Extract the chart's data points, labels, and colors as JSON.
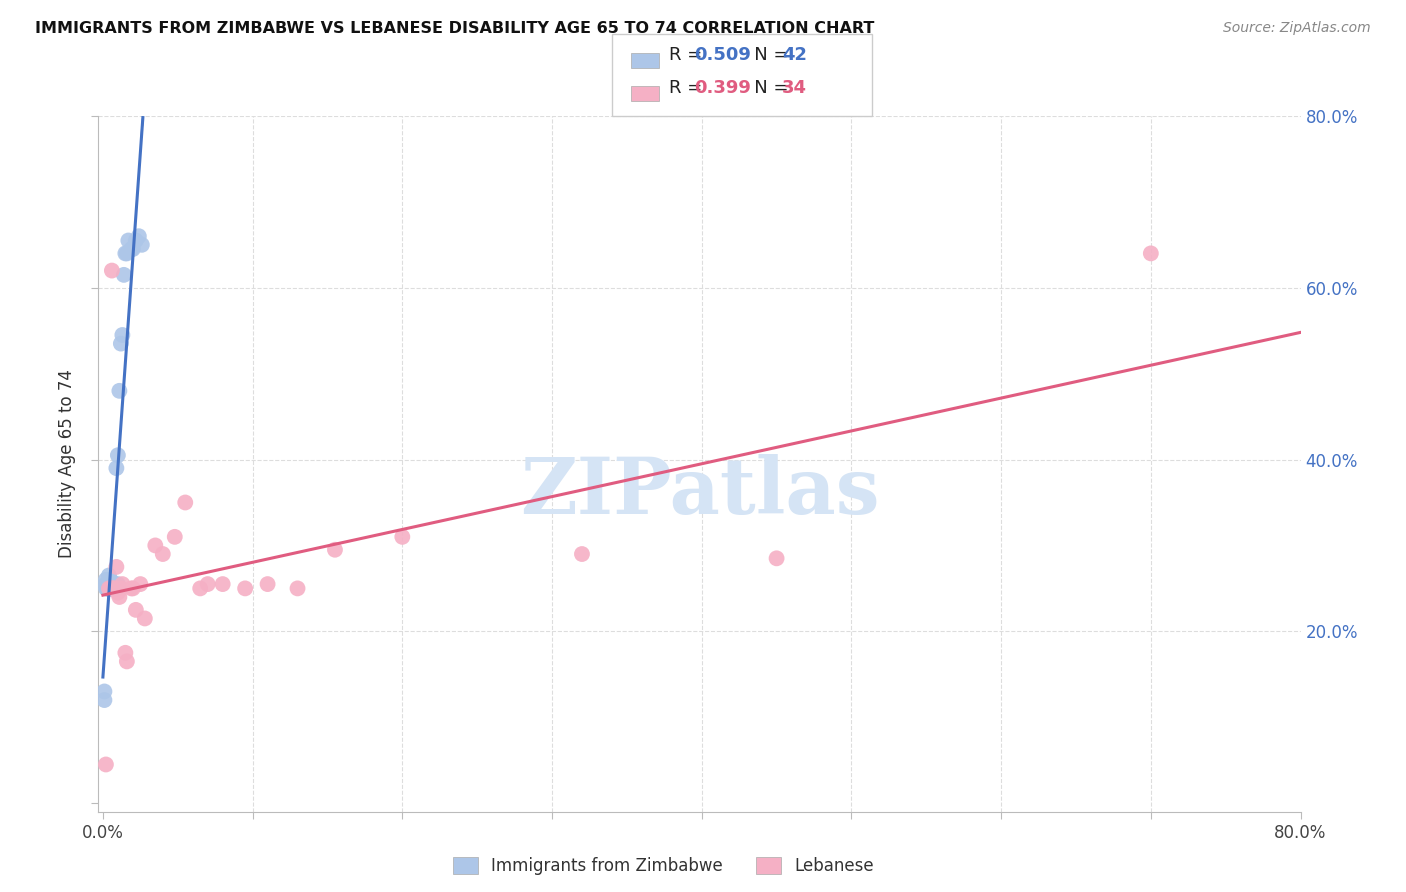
{
  "title": "IMMIGRANTS FROM ZIMBABWE VS LEBANESE DISABILITY AGE 65 TO 74 CORRELATION CHART",
  "source": "Source: ZipAtlas.com",
  "ylabel": "Disability Age 65 to 74",
  "xlim": [
    -0.003,
    0.8
  ],
  "ylim": [
    -0.01,
    0.8
  ],
  "series1_color": "#adc6e8",
  "series2_color": "#f5b0c5",
  "line1_color": "#4472c4",
  "line2_color": "#e05c80",
  "legend_r1_color": "#4472c4",
  "legend_r2_color": "#e05c80",
  "watermark": "ZIPatlas",
  "watermark_color": "#d5e4f5",
  "background_color": "#ffffff",
  "grid_color": "#dddddd",
  "zimbabwe_x": [
    0.001,
    0.001,
    0.002,
    0.002,
    0.002,
    0.003,
    0.003,
    0.003,
    0.003,
    0.004,
    0.004,
    0.004,
    0.004,
    0.005,
    0.005,
    0.005,
    0.005,
    0.005,
    0.006,
    0.006,
    0.006,
    0.006,
    0.007,
    0.007,
    0.008,
    0.008,
    0.009,
    0.009,
    0.01,
    0.01,
    0.011,
    0.012,
    0.013,
    0.014,
    0.015,
    0.016,
    0.017,
    0.019,
    0.02,
    0.022,
    0.024,
    0.026
  ],
  "zimbabwe_y": [
    0.13,
    0.12,
    0.25,
    0.255,
    0.26,
    0.25,
    0.25,
    0.25,
    0.255,
    0.25,
    0.25,
    0.25,
    0.265,
    0.25,
    0.255,
    0.255,
    0.255,
    0.26,
    0.255,
    0.25,
    0.25,
    0.255,
    0.255,
    0.25,
    0.255,
    0.255,
    0.25,
    0.39,
    0.255,
    0.405,
    0.48,
    0.535,
    0.545,
    0.615,
    0.64,
    0.64,
    0.655,
    0.645,
    0.645,
    0.655,
    0.66,
    0.65
  ],
  "lebanese_x": [
    0.002,
    0.004,
    0.005,
    0.006,
    0.006,
    0.007,
    0.008,
    0.009,
    0.01,
    0.011,
    0.012,
    0.013,
    0.015,
    0.016,
    0.019,
    0.02,
    0.022,
    0.025,
    0.028,
    0.035,
    0.04,
    0.048,
    0.055,
    0.065,
    0.07,
    0.08,
    0.095,
    0.11,
    0.13,
    0.155,
    0.2,
    0.32,
    0.45,
    0.7
  ],
  "lebanese_y": [
    0.045,
    0.25,
    0.25,
    0.25,
    0.62,
    0.25,
    0.25,
    0.275,
    0.245,
    0.24,
    0.25,
    0.255,
    0.175,
    0.165,
    0.25,
    0.25,
    0.225,
    0.255,
    0.215,
    0.3,
    0.29,
    0.31,
    0.35,
    0.25,
    0.255,
    0.255,
    0.25,
    0.255,
    0.25,
    0.295,
    0.31,
    0.29,
    0.285,
    0.64
  ]
}
